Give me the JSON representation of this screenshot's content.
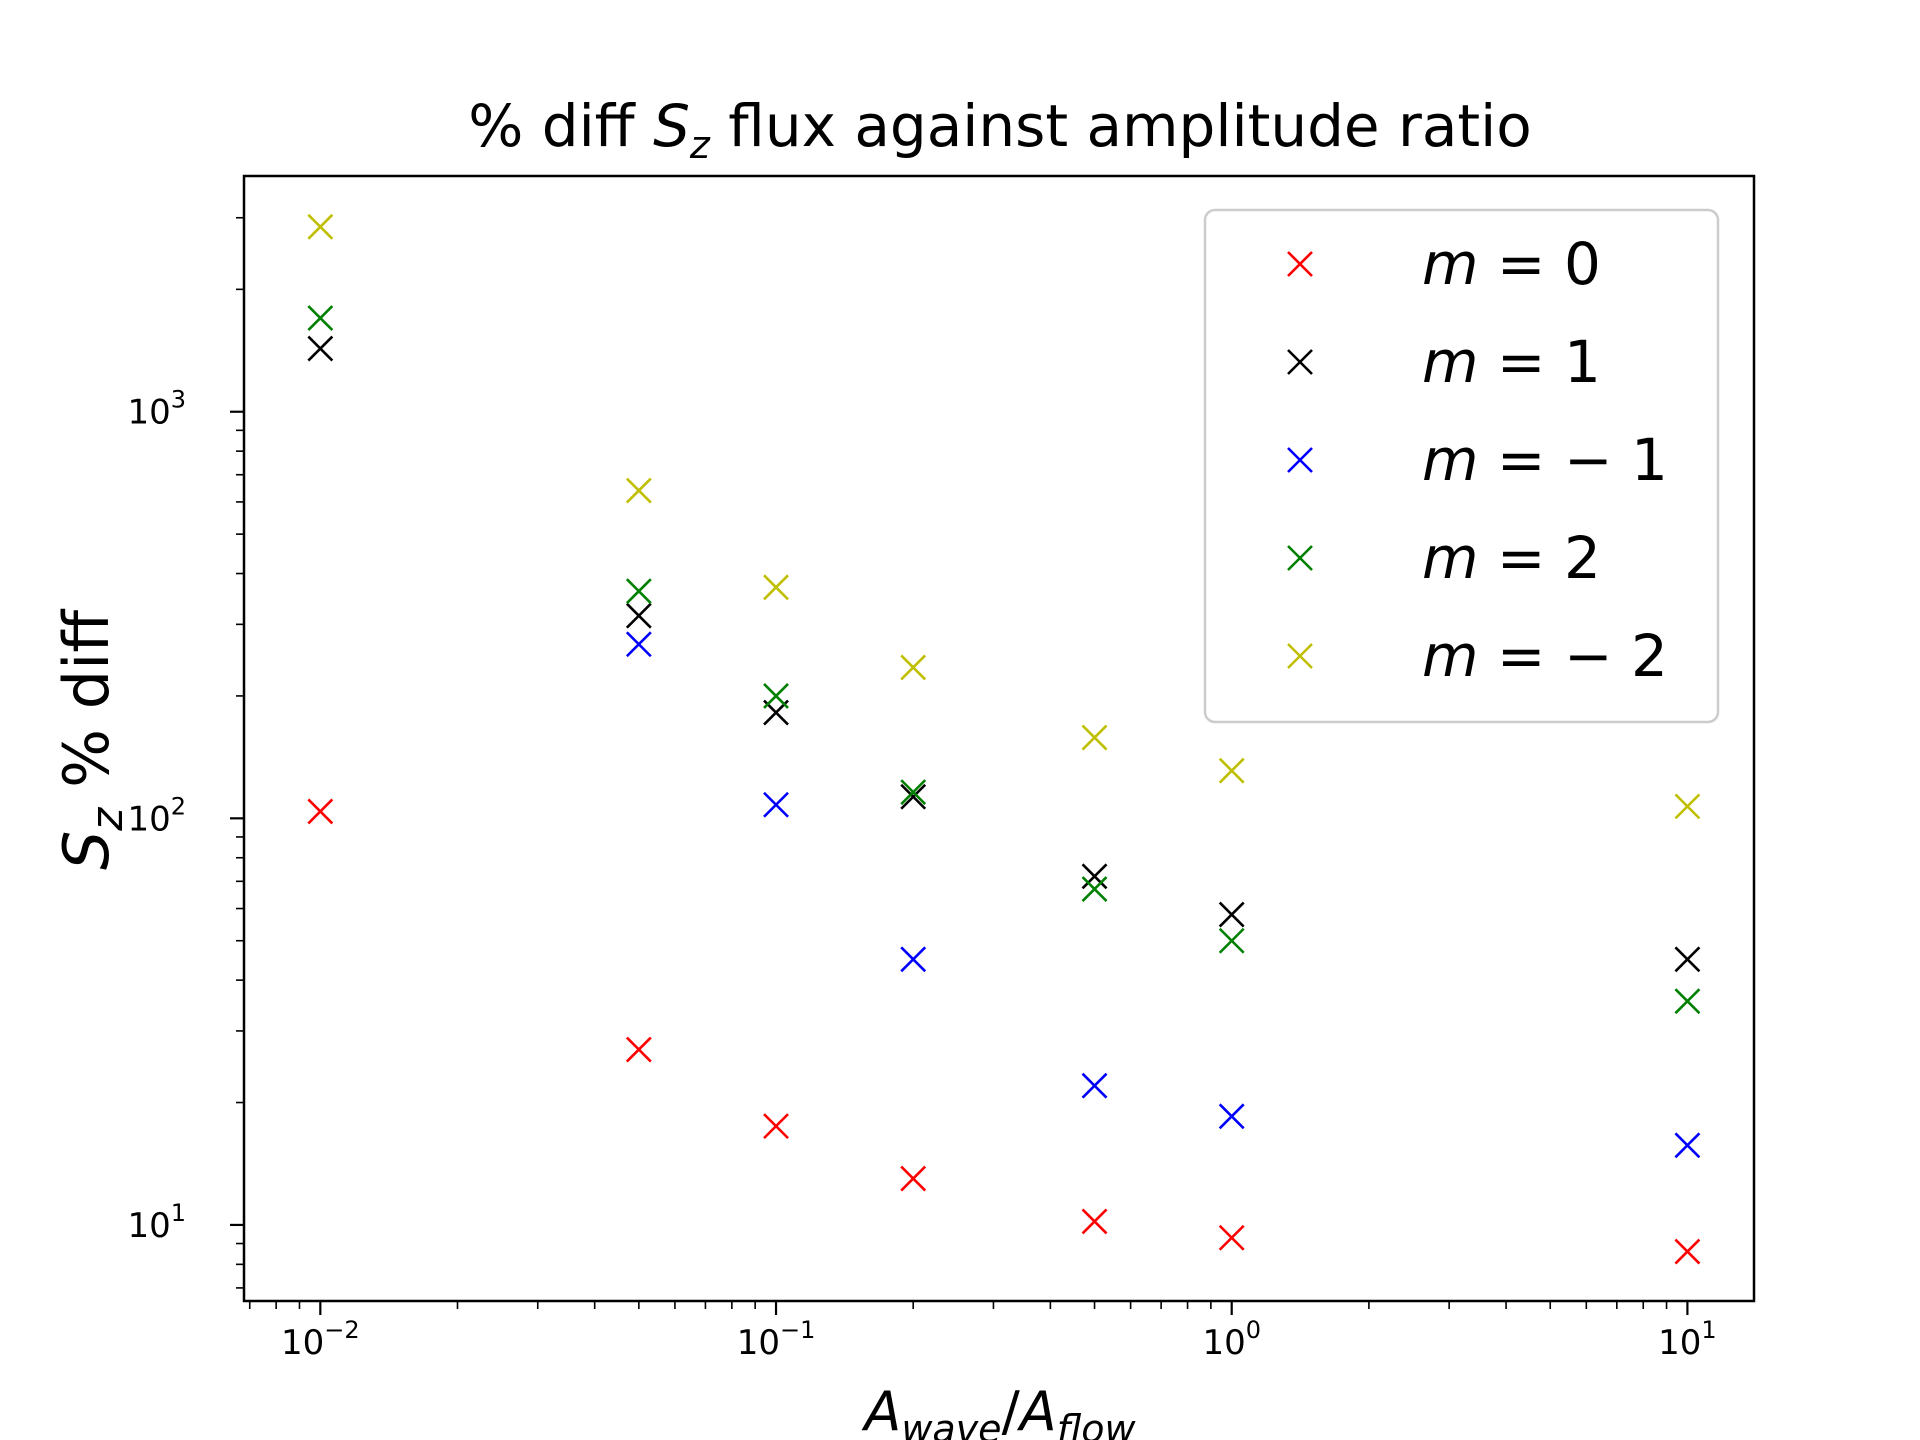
{
  "chart_data": {
    "type": "scatter",
    "title": "% diff S_z flux against amplitude ratio",
    "title_parts": {
      "prefix": "% diff ",
      "symbol": "S",
      "subscript": "z",
      "suffix": " flux against amplitude ratio"
    },
    "xlabel": "A_wave/A_flow",
    "xlabel_parts": {
      "a1": "A",
      "sub1": "wave",
      "slash": "/",
      "a2": "A",
      "sub2": "flow"
    },
    "ylabel": "S_z % diff",
    "ylabel_parts": {
      "symbol": "S",
      "subscript": "z",
      "suffix": " % diff"
    },
    "xscale": "log",
    "yscale": "log",
    "xlim": [
      0.0068,
      14
    ],
    "ylim": [
      6.5,
      3800
    ],
    "x": [
      0.01,
      0.05,
      0.1,
      0.2,
      0.5,
      1,
      10
    ],
    "marker": "x",
    "series": [
      {
        "name": "m = 0",
        "color": "#ff0000",
        "values": [
          104,
          27,
          17.5,
          13,
          10.2,
          9.3,
          8.6
        ]
      },
      {
        "name": "m = 1",
        "color": "#000000",
        "values": [
          1430,
          315,
          182,
          113,
          72,
          58,
          45
        ]
      },
      {
        "name": "m = −1",
        "color": "#0000ff",
        "values": [
          null,
          268,
          108,
          45,
          22,
          18.5,
          15.7
        ]
      },
      {
        "name": "m = 2",
        "color": "#008000",
        "values": [
          1700,
          362,
          200,
          116,
          67,
          50,
          35.5
        ]
      },
      {
        "name": "m = −2",
        "color": "#bfbf00",
        "values": [
          2850,
          640,
          370,
          235,
          158,
          131,
          107
        ]
      }
    ],
    "legend": {
      "location": "upper right",
      "entries": [
        {
          "m": "m",
          "eq": " = ",
          "val": "0"
        },
        {
          "m": "m",
          "eq": " = ",
          "val": "1"
        },
        {
          "m": "m",
          "eq": " = ",
          "val": "− 1"
        },
        {
          "m": "m",
          "eq": " = ",
          "val": "2"
        },
        {
          "m": "m",
          "eq": " = ",
          "val": "− 2"
        }
      ]
    },
    "x_ticks": [
      {
        "value": 0.01,
        "base": "10",
        "exp": "−2"
      },
      {
        "value": 0.1,
        "base": "10",
        "exp": "−1"
      },
      {
        "value": 1,
        "base": "10",
        "exp": "0"
      },
      {
        "value": 10,
        "base": "10",
        "exp": "1"
      }
    ],
    "y_ticks": [
      {
        "value": 10,
        "base": "10",
        "exp": "1"
      },
      {
        "value": 100,
        "base": "10",
        "exp": "2"
      },
      {
        "value": 1000,
        "base": "10",
        "exp": "3"
      }
    ],
    "grid": false
  }
}
